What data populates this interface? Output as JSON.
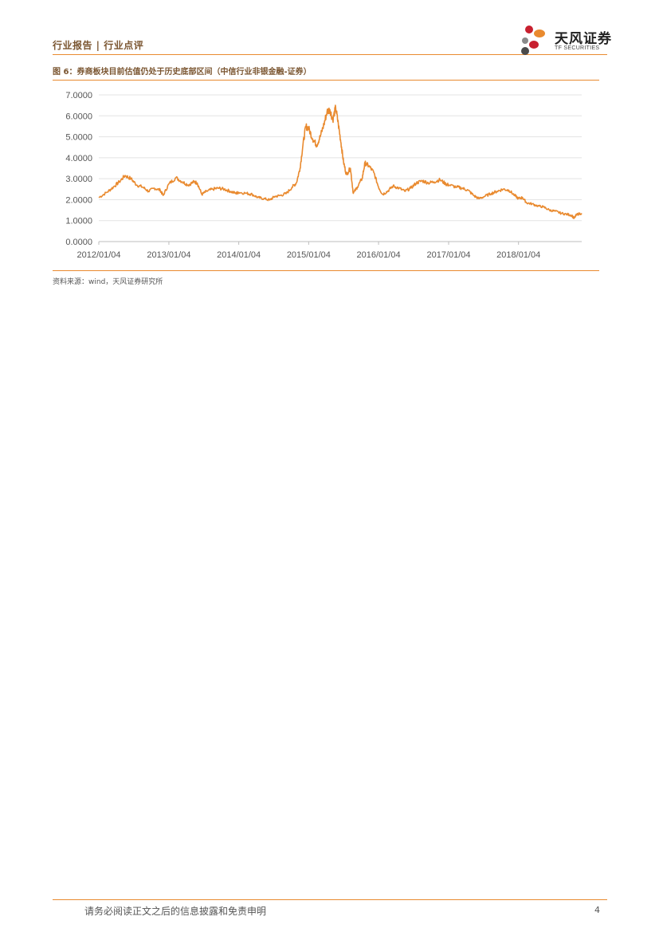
{
  "header": {
    "text": "行业报告 | 行业点评"
  },
  "logo": {
    "cn": "天风证券",
    "en": "TF SECURITIES",
    "colors": [
      "#c8202f",
      "#e98a2f",
      "#8a8a8a",
      "#4a4a4a"
    ]
  },
  "figure": {
    "caption": "图 6：券商板块目前估值仍处于历史底部区间（中信行业非银金融-证券）",
    "source": "资料来源：wind，天风证券研究所"
  },
  "chart_data": {
    "type": "line",
    "x_tick_labels": [
      "2012/01/04",
      "2013/01/04",
      "2014/01/04",
      "2015/01/04",
      "2016/01/04",
      "2017/01/04",
      "2018/01/04"
    ],
    "y_tick_labels": [
      "0.0000",
      "1.0000",
      "2.0000",
      "3.0000",
      "4.0000",
      "5.0000",
      "6.0000",
      "7.0000"
    ],
    "ylim": [
      0,
      7
    ],
    "xlim": [
      "2012-01-04",
      "2018-11-30"
    ],
    "grid": "horizontal",
    "line_color": "#e98a2f",
    "series": [
      {
        "points": [
          [
            "2012-01-04",
            2.1
          ],
          [
            "2012-02-15",
            2.35
          ],
          [
            "2012-03-20",
            2.6
          ],
          [
            "2012-04-20",
            2.85
          ],
          [
            "2012-05-20",
            3.15
          ],
          [
            "2012-06-20",
            3.0
          ],
          [
            "2012-07-20",
            2.7
          ],
          [
            "2012-08-20",
            2.6
          ],
          [
            "2012-09-20",
            2.4
          ],
          [
            "2012-10-20",
            2.55
          ],
          [
            "2012-11-20",
            2.45
          ],
          [
            "2012-12-05",
            2.2
          ],
          [
            "2013-01-04",
            2.75
          ],
          [
            "2013-02-10",
            3.05
          ],
          [
            "2013-03-15",
            2.85
          ],
          [
            "2013-04-15",
            2.7
          ],
          [
            "2013-05-15",
            2.85
          ],
          [
            "2013-06-01",
            2.8
          ],
          [
            "2013-06-25",
            2.25
          ],
          [
            "2013-07-20",
            2.4
          ],
          [
            "2013-08-20",
            2.5
          ],
          [
            "2013-09-20",
            2.55
          ],
          [
            "2013-10-20",
            2.5
          ],
          [
            "2013-11-20",
            2.4
          ],
          [
            "2013-12-20",
            2.3
          ],
          [
            "2014-01-04",
            2.35
          ],
          [
            "2014-02-15",
            2.3
          ],
          [
            "2014-03-15",
            2.25
          ],
          [
            "2014-04-15",
            2.1
          ],
          [
            "2014-05-15",
            2.05
          ],
          [
            "2014-06-15",
            1.98
          ],
          [
            "2014-07-10",
            2.15
          ],
          [
            "2014-08-10",
            2.2
          ],
          [
            "2014-09-10",
            2.3
          ],
          [
            "2014-10-10",
            2.6
          ],
          [
            "2014-11-01",
            2.8
          ],
          [
            "2014-11-20",
            3.5
          ],
          [
            "2014-12-05",
            4.6
          ],
          [
            "2014-12-20",
            5.5
          ],
          [
            "2015-01-04",
            5.4
          ],
          [
            "2015-01-25",
            4.9
          ],
          [
            "2015-02-15",
            4.6
          ],
          [
            "2015-03-05",
            5.0
          ],
          [
            "2015-03-25",
            5.6
          ],
          [
            "2015-04-10",
            6.2
          ],
          [
            "2015-04-25",
            6.3
          ],
          [
            "2015-05-10",
            5.8
          ],
          [
            "2015-05-25",
            6.4
          ],
          [
            "2015-06-08",
            5.6
          ],
          [
            "2015-06-22",
            4.7
          ],
          [
            "2015-07-05",
            3.8
          ],
          [
            "2015-07-20",
            3.2
          ],
          [
            "2015-08-10",
            3.5
          ],
          [
            "2015-08-25",
            2.3
          ],
          [
            "2015-09-15",
            2.6
          ],
          [
            "2015-10-10",
            3.0
          ],
          [
            "2015-10-25",
            3.75
          ],
          [
            "2015-11-15",
            3.6
          ],
          [
            "2015-12-10",
            3.3
          ],
          [
            "2016-01-04",
            2.6
          ],
          [
            "2016-01-25",
            2.25
          ],
          [
            "2016-02-20",
            2.4
          ],
          [
            "2016-03-20",
            2.65
          ],
          [
            "2016-04-20",
            2.55
          ],
          [
            "2016-05-20",
            2.4
          ],
          [
            "2016-06-20",
            2.55
          ],
          [
            "2016-07-20",
            2.8
          ],
          [
            "2016-08-20",
            2.9
          ],
          [
            "2016-09-20",
            2.8
          ],
          [
            "2016-10-20",
            2.85
          ],
          [
            "2016-11-20",
            2.95
          ],
          [
            "2016-12-20",
            2.75
          ],
          [
            "2017-01-04",
            2.7
          ],
          [
            "2017-02-15",
            2.6
          ],
          [
            "2017-03-15",
            2.55
          ],
          [
            "2017-04-15",
            2.45
          ],
          [
            "2017-05-15",
            2.2
          ],
          [
            "2017-06-10",
            2.05
          ],
          [
            "2017-07-10",
            2.15
          ],
          [
            "2017-08-15",
            2.3
          ],
          [
            "2017-09-15",
            2.4
          ],
          [
            "2017-10-15",
            2.5
          ],
          [
            "2017-11-15",
            2.45
          ],
          [
            "2017-12-15",
            2.2
          ],
          [
            "2018-01-04",
            2.05
          ],
          [
            "2018-01-25",
            2.1
          ],
          [
            "2018-02-15",
            1.85
          ],
          [
            "2018-03-15",
            1.8
          ],
          [
            "2018-04-15",
            1.7
          ],
          [
            "2018-05-15",
            1.65
          ],
          [
            "2018-06-15",
            1.5
          ],
          [
            "2018-07-15",
            1.45
          ],
          [
            "2018-08-15",
            1.35
          ],
          [
            "2018-09-15",
            1.3
          ],
          [
            "2018-10-10",
            1.25
          ],
          [
            "2018-10-20",
            1.1
          ],
          [
            "2018-11-05",
            1.3
          ],
          [
            "2018-11-30",
            1.35
          ]
        ]
      }
    ]
  },
  "footer": {
    "disclaimer": "请务必阅读正文之后的信息披露和免责申明",
    "page": "4"
  }
}
